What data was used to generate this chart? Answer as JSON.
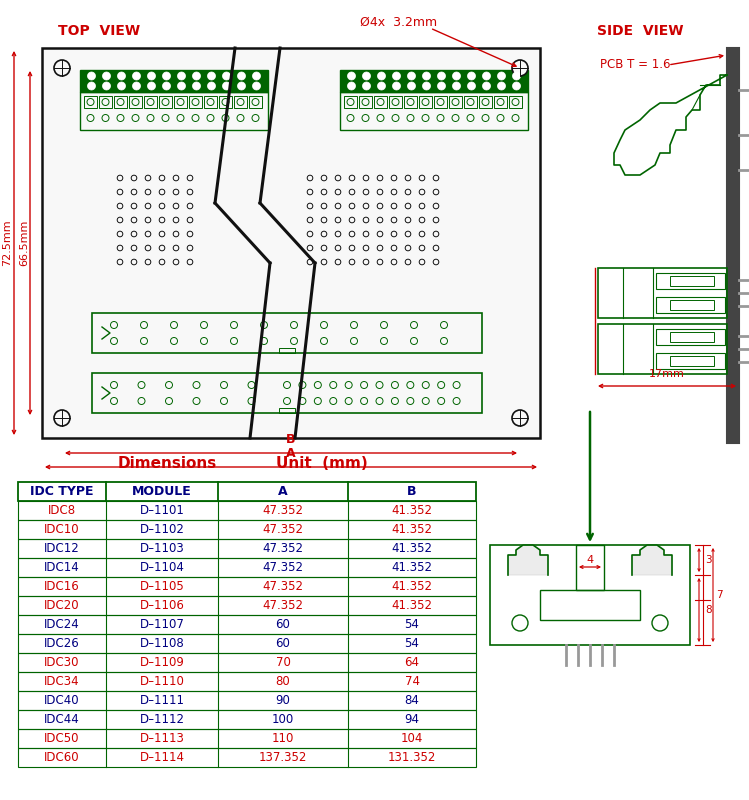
{
  "bg_color": "#ffffff",
  "green": "#006400",
  "bright_green": "#228B22",
  "red": "#cc0000",
  "navy": "#000080",
  "gray": "#999999",
  "dark_gray": "#444444",
  "black": "#111111",
  "light_green_fill": "#90EE90",
  "top_view_label": "TOP  VIEW",
  "side_view_label": "SIDE  VIEW",
  "dim_label": "Dimensions",
  "unit_label": "Unit  (mm)",
  "hole_label": "Ø4x  3.2mm",
  "pcb_t_label": "PCB T = 1.6",
  "dim_17mm": "17mm",
  "dim_72_5mm": "72.5mm",
  "dim_66_5mm": "66.5mm",
  "dim_A": "A",
  "dim_B": "B",
  "num_4": "4",
  "num_3": "3",
  "num_8": "8",
  "num_17": "17",
  "table_headers": [
    "IDC TYPE",
    "MODULE",
    "A",
    "B"
  ],
  "table_rows": [
    [
      "IDC8",
      "D–1101",
      "47.352",
      "41.352"
    ],
    [
      "IDC10",
      "D–1102",
      "47.352",
      "41.352"
    ],
    [
      "IDC12",
      "D–1103",
      "47.352",
      "41.352"
    ],
    [
      "IDC14",
      "D–1104",
      "47.352",
      "41.352"
    ],
    [
      "IDC16",
      "D–1105",
      "47.352",
      "41.352"
    ],
    [
      "IDC20",
      "D–1106",
      "47.352",
      "41.352"
    ],
    [
      "IDC24",
      "D–1107",
      "60",
      "54"
    ],
    [
      "IDC26",
      "D–1108",
      "60",
      "54"
    ],
    [
      "IDC30",
      "D–1109",
      "70",
      "64"
    ],
    [
      "IDC34",
      "D–1110",
      "80",
      "74"
    ],
    [
      "IDC40",
      "D–1111",
      "90",
      "84"
    ],
    [
      "IDC44",
      "D–1112",
      "100",
      "94"
    ],
    [
      "IDC50",
      "D–1113",
      "110",
      "104"
    ],
    [
      "IDC60",
      "D–1114",
      "137.352",
      "131.352"
    ]
  ],
  "row_colors_type": [
    "#cc0000",
    "#cc0000",
    "#000080",
    "#000080",
    "#cc0000",
    "#cc0000",
    "#000080",
    "#000080",
    "#cc0000",
    "#cc0000",
    "#000080",
    "#000080",
    "#cc0000",
    "#cc0000"
  ],
  "row_colors_module": [
    "#000080",
    "#000080",
    "#000080",
    "#000080",
    "#cc0000",
    "#cc0000",
    "#000080",
    "#000080",
    "#cc0000",
    "#cc0000",
    "#000080",
    "#000080",
    "#cc0000",
    "#cc0000"
  ],
  "row_colors_ab": [
    "#cc0000",
    "#cc0000",
    "#000080",
    "#000080",
    "#cc0000",
    "#cc0000",
    "#000080",
    "#000080",
    "#cc0000",
    "#cc0000",
    "#000080",
    "#000080",
    "#cc0000",
    "#cc0000"
  ]
}
